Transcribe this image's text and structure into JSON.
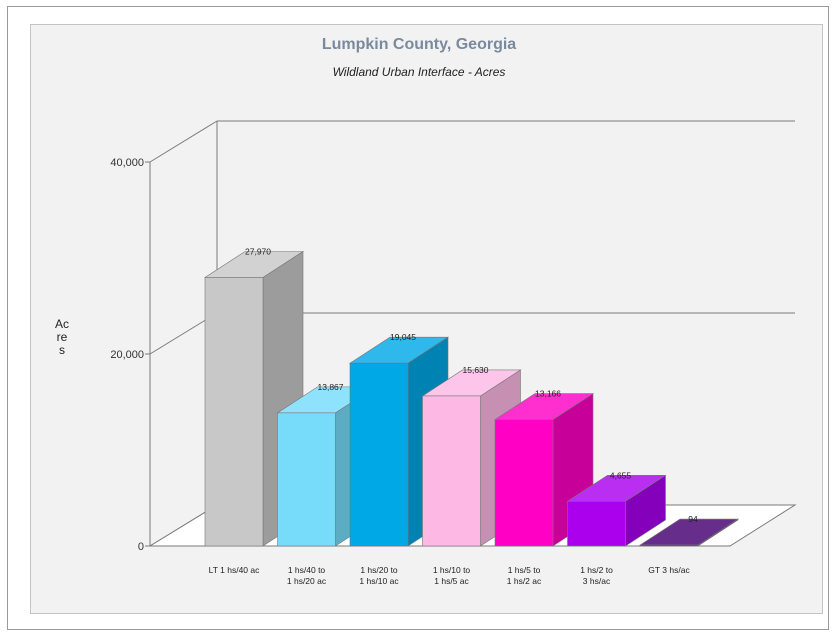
{
  "chart_data": {
    "type": "bar",
    "title": "Lumpkin County, Georgia",
    "subtitle": "Wildland Urban Interface - Acres",
    "ylabel": "Acres",
    "xlabel": "",
    "ylim": [
      0,
      40000
    ],
    "yticks": [
      "0",
      "20,000",
      "40,000"
    ],
    "ytick_values": [
      0,
      20000,
      40000
    ],
    "grid": true,
    "three_d": true,
    "categories": [
      [
        "LT 1 hs/40 ac"
      ],
      [
        "1 hs/40 to",
        "1 hs/20 ac"
      ],
      [
        "1 hs/20 to",
        "1 hs/10 ac"
      ],
      [
        "1 hs/10 to",
        "1 hs/5 ac"
      ],
      [
        "1 hs/5 to",
        "1 hs/2 ac"
      ],
      [
        "1 hs/2 to",
        "3 hs/ac"
      ],
      [
        "GT 3 hs/ac"
      ]
    ],
    "values": [
      27970,
      13867,
      19045,
      15630,
      13166,
      4655,
      94
    ],
    "value_labels": [
      "27,970",
      "13,867",
      "19,045",
      "15,630",
      "13,166",
      "4,655",
      "94"
    ],
    "colors": [
      "#c8c8c8",
      "#76dcfa",
      "#00a8e6",
      "#fdb8e4",
      "#ff00c4",
      "#aa00ee",
      "#440070"
    ]
  }
}
